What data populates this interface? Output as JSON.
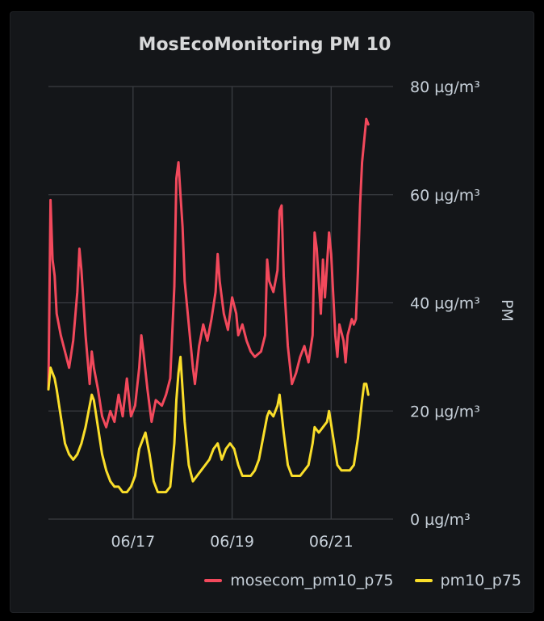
{
  "panel": {
    "title": "MosEcoMonitoring PM 10"
  },
  "chart_data": {
    "type": "line",
    "title": "MosEcoMonitoring PM 10",
    "xlabel": "",
    "ylabel": "PM",
    "y_unit": "µg/m³",
    "ylim": [
      0,
      80
    ],
    "y_ticks": [
      0,
      20,
      40,
      60,
      80
    ],
    "y_tick_labels": [
      "0 µg/m³",
      "20 µg/m³",
      "40 µg/m³",
      "60 µg/m³",
      "80 µg/m³"
    ],
    "y_axis_position": "right",
    "xlim": [
      "06/15 07:00",
      "06/22 06:00"
    ],
    "x_ticks": [
      {
        "date": "06/17",
        "label": "06/17"
      },
      {
        "date": "06/19",
        "label": "06/19"
      },
      {
        "date": "06/21",
        "label": "06/21"
      }
    ],
    "grid": true,
    "legend_placement": "bottom-right",
    "series": [
      {
        "name": "mosecom_pm10_p75",
        "color": "#f2495c",
        "points": [
          [
            "06/15 07:00",
            24
          ],
          [
            "06/15 08:00",
            59
          ],
          [
            "06/15 09:00",
            48
          ],
          [
            "06/15 10:00",
            45
          ],
          [
            "06/15 11:00",
            38
          ],
          [
            "06/15 13:00",
            34
          ],
          [
            "06/15 15:00",
            31
          ],
          [
            "06/15 17:00",
            28
          ],
          [
            "06/15 19:00",
            33
          ],
          [
            "06/15 21:00",
            42
          ],
          [
            "06/15 22:00",
            50
          ],
          [
            "06/15 23:00",
            46
          ],
          [
            "06/16 01:00",
            34
          ],
          [
            "06/16 03:00",
            25
          ],
          [
            "06/16 04:00",
            31
          ],
          [
            "06/16 05:00",
            28
          ],
          [
            "06/16 07:00",
            24
          ],
          [
            "06/16 09:00",
            19
          ],
          [
            "06/16 11:00",
            17
          ],
          [
            "06/16 13:00",
            20
          ],
          [
            "06/16 15:00",
            18
          ],
          [
            "06/16 17:00",
            23
          ],
          [
            "06/16 19:00",
            19
          ],
          [
            "06/16 21:00",
            26
          ],
          [
            "06/16 23:00",
            19
          ],
          [
            "06/17 01:00",
            21
          ],
          [
            "06/17 03:00",
            28
          ],
          [
            "06/17 04:00",
            34
          ],
          [
            "06/17 05:00",
            31
          ],
          [
            "06/17 07:00",
            24
          ],
          [
            "06/17 09:00",
            18
          ],
          [
            "06/17 11:00",
            22
          ],
          [
            "06/17 14:00",
            21
          ],
          [
            "06/17 16:00",
            23
          ],
          [
            "06/17 18:00",
            26
          ],
          [
            "06/17 20:00",
            43
          ],
          [
            "06/17 21:00",
            63
          ],
          [
            "06/17 22:00",
            66
          ],
          [
            "06/17 23:00",
            60
          ],
          [
            "06/18 00:00",
            54
          ],
          [
            "06/18 01:00",
            44
          ],
          [
            "06/18 03:00",
            36
          ],
          [
            "06/18 05:00",
            28
          ],
          [
            "06/18 06:00",
            25
          ],
          [
            "06/18 08:00",
            32
          ],
          [
            "06/18 10:00",
            36
          ],
          [
            "06/18 12:00",
            33
          ],
          [
            "06/18 14:00",
            37
          ],
          [
            "06/18 16:00",
            42
          ],
          [
            "06/18 17:00",
            49
          ],
          [
            "06/18 18:00",
            44
          ],
          [
            "06/18 20:00",
            38
          ],
          [
            "06/18 22:00",
            35
          ],
          [
            "06/19 00:00",
            41
          ],
          [
            "06/19 02:00",
            38
          ],
          [
            "06/19 03:00",
            34
          ],
          [
            "06/19 05:00",
            36
          ],
          [
            "06/19 07:00",
            33
          ],
          [
            "06/19 09:00",
            31
          ],
          [
            "06/19 11:00",
            30
          ],
          [
            "06/19 14:00",
            31
          ],
          [
            "06/19 16:00",
            34
          ],
          [
            "06/19 17:00",
            48
          ],
          [
            "06/19 18:00",
            44
          ],
          [
            "06/19 20:00",
            42
          ],
          [
            "06/19 22:00",
            46
          ],
          [
            "06/19 23:00",
            57
          ],
          [
            "06/20 00:00",
            58
          ],
          [
            "06/20 01:00",
            45
          ],
          [
            "06/20 03:00",
            32
          ],
          [
            "06/20 05:00",
            25
          ],
          [
            "06/20 07:00",
            27
          ],
          [
            "06/20 09:00",
            30
          ],
          [
            "06/20 11:00",
            32
          ],
          [
            "06/20 13:00",
            29
          ],
          [
            "06/20 15:00",
            34
          ],
          [
            "06/20 16:00",
            53
          ],
          [
            "06/20 17:00",
            50
          ],
          [
            "06/20 19:00",
            38
          ],
          [
            "06/20 20:00",
            48
          ],
          [
            "06/20 21:00",
            41
          ],
          [
            "06/20 23:00",
            53
          ],
          [
            "06/21 00:00",
            49
          ],
          [
            "06/21 02:00",
            34
          ],
          [
            "06/21 03:00",
            30
          ],
          [
            "06/21 04:00",
            36
          ],
          [
            "06/21 06:00",
            33
          ],
          [
            "06/21 07:00",
            29
          ],
          [
            "06/21 08:00",
            34
          ],
          [
            "06/21 10:00",
            37
          ],
          [
            "06/21 11:00",
            36
          ],
          [
            "06/21 12:00",
            37
          ],
          [
            "06/21 13:00",
            46
          ],
          [
            "06/21 14:00",
            58
          ],
          [
            "06/21 15:00",
            66
          ],
          [
            "06/21 16:00",
            70
          ],
          [
            "06/21 17:00",
            74
          ],
          [
            "06/21 18:00",
            73
          ]
        ]
      },
      {
        "name": "pm10_p75",
        "color": "#fade2a",
        "points": [
          [
            "06/15 07:00",
            24
          ],
          [
            "06/15 08:00",
            28
          ],
          [
            "06/15 09:00",
            27
          ],
          [
            "06/15 10:00",
            26
          ],
          [
            "06/15 11:00",
            24
          ],
          [
            "06/15 13:00",
            19
          ],
          [
            "06/15 15:00",
            14
          ],
          [
            "06/15 17:00",
            12
          ],
          [
            "06/15 19:00",
            11
          ],
          [
            "06/15 21:00",
            12
          ],
          [
            "06/15 23:00",
            14
          ],
          [
            "06/16 01:00",
            17
          ],
          [
            "06/16 03:00",
            21
          ],
          [
            "06/16 04:00",
            23
          ],
          [
            "06/16 05:00",
            22
          ],
          [
            "06/16 07:00",
            17
          ],
          [
            "06/16 09:00",
            12
          ],
          [
            "06/16 11:00",
            9
          ],
          [
            "06/16 13:00",
            7
          ],
          [
            "06/16 15:00",
            6
          ],
          [
            "06/16 17:00",
            6
          ],
          [
            "06/16 19:00",
            5
          ],
          [
            "06/16 21:00",
            5
          ],
          [
            "06/16 23:00",
            6
          ],
          [
            "06/17 01:00",
            8
          ],
          [
            "06/17 03:00",
            13
          ],
          [
            "06/17 05:00",
            15
          ],
          [
            "06/17 06:00",
            16
          ],
          [
            "06/17 08:00",
            12
          ],
          [
            "06/17 10:00",
            7
          ],
          [
            "06/17 12:00",
            5
          ],
          [
            "06/17 14:00",
            5
          ],
          [
            "06/17 16:00",
            5
          ],
          [
            "06/17 18:00",
            6
          ],
          [
            "06/17 20:00",
            14
          ],
          [
            "06/17 21:00",
            22
          ],
          [
            "06/17 22:00",
            27
          ],
          [
            "06/17 23:00",
            30
          ],
          [
            "06/18 00:00",
            24
          ],
          [
            "06/18 01:00",
            18
          ],
          [
            "06/18 03:00",
            10
          ],
          [
            "06/18 05:00",
            7
          ],
          [
            "06/18 07:00",
            8
          ],
          [
            "06/18 09:00",
            9
          ],
          [
            "06/18 11:00",
            10
          ],
          [
            "06/18 13:00",
            11
          ],
          [
            "06/18 15:00",
            13
          ],
          [
            "06/18 17:00",
            14
          ],
          [
            "06/18 19:00",
            11
          ],
          [
            "06/18 21:00",
            13
          ],
          [
            "06/18 23:00",
            14
          ],
          [
            "06/19 01:00",
            13
          ],
          [
            "06/19 03:00",
            10
          ],
          [
            "06/19 05:00",
            8
          ],
          [
            "06/19 07:00",
            8
          ],
          [
            "06/19 09:00",
            8
          ],
          [
            "06/19 11:00",
            9
          ],
          [
            "06/19 13:00",
            11
          ],
          [
            "06/19 15:00",
            15
          ],
          [
            "06/19 17:00",
            19
          ],
          [
            "06/19 18:00",
            20
          ],
          [
            "06/19 20:00",
            19
          ],
          [
            "06/19 22:00",
            21
          ],
          [
            "06/19 23:00",
            23
          ],
          [
            "06/20 01:00",
            16
          ],
          [
            "06/20 03:00",
            10
          ],
          [
            "06/20 05:00",
            8
          ],
          [
            "06/20 07:00",
            8
          ],
          [
            "06/20 09:00",
            8
          ],
          [
            "06/20 11:00",
            9
          ],
          [
            "06/20 13:00",
            10
          ],
          [
            "06/20 15:00",
            14
          ],
          [
            "06/20 16:00",
            17
          ],
          [
            "06/20 18:00",
            16
          ],
          [
            "06/20 20:00",
            17
          ],
          [
            "06/20 22:00",
            18
          ],
          [
            "06/20 23:00",
            20
          ],
          [
            "06/21 01:00",
            15
          ],
          [
            "06/21 03:00",
            10
          ],
          [
            "06/21 05:00",
            9
          ],
          [
            "06/21 07:00",
            9
          ],
          [
            "06/21 09:00",
            9
          ],
          [
            "06/21 11:00",
            10
          ],
          [
            "06/21 13:00",
            15
          ],
          [
            "06/21 15:00",
            22
          ],
          [
            "06/21 16:00",
            25
          ],
          [
            "06/21 17:00",
            25
          ],
          [
            "06/21 18:00",
            23
          ]
        ]
      }
    ]
  }
}
